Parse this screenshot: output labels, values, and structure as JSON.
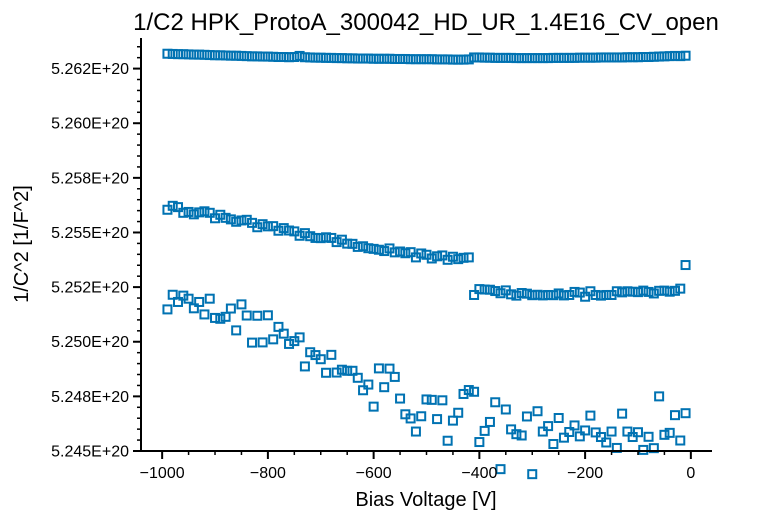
{
  "chart_data": {
    "type": "scatter",
    "title": "1/C2 HPK_ProtoA_300042_HD_UR_1.4E16_CV_open",
    "xlabel": "Bias Voltage [V]",
    "ylabel": "1/C^2 [1/F^2]",
    "xlim": [
      -1040,
      40
    ],
    "ylim": [
      5.245e+20,
      5.2639e+20
    ],
    "x_ticks": [
      -1000,
      -800,
      -600,
      -400,
      -200,
      0
    ],
    "x_tick_labels": [
      "−1000",
      "−800",
      "−600",
      "−400",
      "−200",
      "0"
    ],
    "y_ticks": [
      5.245e+20,
      5.2475e+20,
      5.25e+20,
      5.2525e+20,
      5.255e+20,
      5.2575e+20,
      5.26e+20,
      5.2625e+20
    ],
    "y_tick_labels": [
      "5.245E+20",
      "5.248E+20",
      "5.250E+20",
      "5.252E+20",
      "5.255E+20",
      "5.258E+20",
      "5.260E+20",
      "5.262E+20"
    ],
    "grid": false,
    "marker": "open-square",
    "color": "#0072B2",
    "series": [
      {
        "x": [
          -990,
          -980,
          -970,
          -960,
          -950,
          -940,
          -930,
          -920,
          -910,
          -900,
          -890,
          -880,
          -870,
          -860,
          -850,
          -840,
          -830,
          -820,
          -810,
          -800,
          -790,
          -780,
          -770,
          -760,
          -750,
          -740,
          -730,
          -720,
          -710,
          -700,
          -690,
          -680,
          -670,
          -660,
          -650,
          -640,
          -630,
          -620,
          -610,
          -600,
          -590,
          -580,
          -570,
          -560,
          -550,
          -540,
          -530,
          -520,
          -510,
          -500,
          -490,
          -480,
          -470,
          -460,
          -450,
          -440,
          -430,
          -420,
          -410,
          -400,
          -390,
          -380,
          -370,
          -360,
          -350,
          -340,
          -330,
          -320,
          -310,
          -300,
          -290,
          -280,
          -270,
          -260,
          -250,
          -240,
          -230,
          -220,
          -210,
          -200,
          -190,
          -180,
          -170,
          -160,
          -150,
          -140,
          -130,
          -120,
          -110,
          -100,
          -90,
          -80,
          -70,
          -60,
          -50,
          -40,
          -30,
          -20,
          -10
        ],
        "y": [
          5.26318e+20,
          5.26317e+20,
          5.26316e+20,
          5.26316e+20,
          5.26315e+20,
          5.26314e+20,
          5.26314e+20,
          5.26313e+20,
          5.26312e+20,
          5.26311e+20,
          5.26311e+20,
          5.2631e+20,
          5.26309e+20,
          5.26309e+20,
          5.26308e+20,
          5.26307e+20,
          5.26306e+20,
          5.26306e+20,
          5.26305e+20,
          5.26305e+20,
          5.26304e+20,
          5.26303e+20,
          5.26303e+20,
          5.26302e+20,
          5.26303e+20,
          5.26308e+20,
          5.26302e+20,
          5.26301e+20,
          5.263e+20,
          5.263e+20,
          5.26299e+20,
          5.26299e+20,
          5.26298e+20,
          5.26298e+20,
          5.26297e+20,
          5.26297e+20,
          5.26296e+20,
          5.26296e+20,
          5.26296e+20,
          5.26295e+20,
          5.26295e+20,
          5.26295e+20,
          5.26295e+20,
          5.26294e+20,
          5.26294e+20,
          5.26294e+20,
          5.26293e+20,
          5.26293e+20,
          5.26293e+20,
          5.26293e+20,
          5.26293e+20,
          5.26292e+20,
          5.26292e+20,
          5.26292e+20,
          5.26291e+20,
          5.26291e+20,
          5.26291e+20,
          5.26292e+20,
          5.26301e+20,
          5.26301e+20,
          5.263e+20,
          5.263e+20,
          5.26299e+20,
          5.26299e+20,
          5.26299e+20,
          5.26299e+20,
          5.26298e+20,
          5.26298e+20,
          5.26298e+20,
          5.26298e+20,
          5.26298e+20,
          5.26298e+20,
          5.26298e+20,
          5.26299e+20,
          5.26299e+20,
          5.26299e+20,
          5.26299e+20,
          5.26299e+20,
          5.263e+20,
          5.263e+20,
          5.263e+20,
          5.263e+20,
          5.26301e+20,
          5.26301e+20,
          5.26301e+20,
          5.26301e+20,
          5.26301e+20,
          5.26302e+20,
          5.26302e+20,
          5.26302e+20,
          5.26303e+20,
          5.26303e+20,
          5.26304e+20,
          5.26305e+20,
          5.26306e+20,
          5.26307e+20,
          5.26308e+20,
          5.26307e+20,
          5.26309e+20
        ]
      },
      {
        "x": [
          -990,
          -980,
          -970,
          -960,
          -950,
          -940,
          -930,
          -920,
          -910,
          -900,
          -890,
          -880,
          -870,
          -860,
          -850,
          -840,
          -830,
          -820,
          -810,
          -800,
          -790,
          -780,
          -770,
          -760,
          -750,
          -740,
          -730,
          -720,
          -710,
          -700,
          -690,
          -680,
          -670,
          -660,
          -650,
          -640,
          -630,
          -620,
          -610,
          -600,
          -590,
          -580,
          -570,
          -560,
          -550,
          -540,
          -530,
          -520,
          -510,
          -500,
          -490,
          -480,
          -470,
          -460,
          -450,
          -440,
          -430,
          -420
        ],
        "y": [
          5.25604e+20,
          5.25622e+20,
          5.25616e+20,
          5.2559e+20,
          5.25594e+20,
          5.25583e+20,
          5.25592e+20,
          5.25597e+20,
          5.2559e+20,
          5.25565e+20,
          5.25581e+20,
          5.25567e+20,
          5.2556e+20,
          5.25549e+20,
          5.25555e+20,
          5.25558e+20,
          5.25544e+20,
          5.25524e+20,
          5.25538e+20,
          5.25528e+20,
          5.25529e+20,
          5.25508e+20,
          5.2552e+20,
          5.25509e+20,
          5.25505e+20,
          5.25485e+20,
          5.25497e+20,
          5.25483e+20,
          5.25475e+20,
          5.25474e+20,
          5.25478e+20,
          5.25475e+20,
          5.25456e+20,
          5.25467e+20,
          5.25449e+20,
          5.25448e+20,
          5.25434e+20,
          5.25437e+20,
          5.25428e+20,
          5.25425e+20,
          5.25421e+20,
          5.25415e+20,
          5.25427e+20,
          5.25409e+20,
          5.25413e+20,
          5.25405e+20,
          5.2541e+20,
          5.25386e+20,
          5.25404e+20,
          5.25398e+20,
          5.25381e+20,
          5.25391e+20,
          5.25395e+20,
          5.25375e+20,
          5.25389e+20,
          5.25378e+20,
          5.25384e+20,
          5.25386e+20
        ]
      },
      {
        "x": [
          -410,
          -400,
          -390,
          -380,
          -370,
          -360,
          -350,
          -340,
          -330,
          -320,
          -310,
          -300,
          -290,
          -280,
          -270,
          -260,
          -250,
          -240,
          -230,
          -220,
          -210,
          -200,
          -190,
          -180,
          -170,
          -160,
          -150,
          -140,
          -130,
          -120,
          -110,
          -100,
          -90,
          -80,
          -70,
          -60,
          -50,
          -40,
          -30,
          -20,
          -10
        ],
        "y": [
          5.25214e+20,
          5.25241e+20,
          5.25239e+20,
          5.25238e+20,
          5.25232e+20,
          5.25222e+20,
          5.25235e+20,
          5.25217e+20,
          5.25211e+20,
          5.25223e+20,
          5.2522e+20,
          5.25213e+20,
          5.25215e+20,
          5.25212e+20,
          5.25214e+20,
          5.25213e+20,
          5.25221e+20,
          5.25212e+20,
          5.25214e+20,
          5.25228e+20,
          5.25225e+20,
          5.25206e+20,
          5.25231e+20,
          5.25214e+20,
          5.25211e+20,
          5.25214e+20,
          5.25214e+20,
          5.25231e+20,
          5.25226e+20,
          5.25231e+20,
          5.25229e+20,
          5.25227e+20,
          5.25234e+20,
          5.25228e+20,
          5.25221e+20,
          5.25233e+20,
          5.25234e+20,
          5.25229e+20,
          5.25233e+20,
          5.25243e+20,
          5.25351e+20
        ]
      },
      {
        "x": [
          -990,
          -980,
          -970,
          -960,
          -950,
          -940,
          -930,
          -920,
          -910,
          -900,
          -890,
          -880,
          -870,
          -860,
          -850,
          -840,
          -830,
          -820,
          -810,
          -800,
          -790,
          -780,
          -770,
          -760,
          -750,
          -740,
          -730,
          -720,
          -710,
          -700,
          -690,
          -680,
          -670,
          -660,
          -650,
          -640,
          -630,
          -620,
          -610,
          -600,
          -590,
          -580,
          -570,
          -560,
          -550,
          -540,
          -530,
          -520,
          -510,
          -500,
          -490,
          -480,
          -470,
          -460,
          -450,
          -440,
          -430,
          -420,
          -410,
          -400,
          -390,
          -380,
          -370,
          -360,
          -350,
          -340,
          -330,
          -320,
          -310,
          -300,
          -290,
          -280,
          -270,
          -260,
          -250,
          -240,
          -230,
          -220,
          -210,
          -200,
          -190,
          -180,
          -170,
          -160,
          -150,
          -140,
          -130,
          -120,
          -110,
          -100,
          -90,
          -80,
          -70,
          -60,
          -50,
          -40,
          -30,
          -20,
          -10
        ],
        "y": [
          5.25148e+20,
          5.25215e+20,
          5.25182e+20,
          5.25211e+20,
          5.25197e+20,
          5.25153e+20,
          5.25182e+20,
          5.25125e+20,
          5.25197e+20,
          5.25109e+20,
          5.25105e+20,
          5.25114e+20,
          5.25152e+20,
          5.25052e+20,
          5.25171e+20,
          5.2512e+20,
          5.24996e+20,
          5.25119e+20,
          5.24997e+20,
          5.25121e+20,
          5.25011e+20,
          5.25068e+20,
          5.25037e+20,
          5.2499e+20,
          5.25003e+20,
          5.2502e+20,
          5.24887e+20,
          5.24952e+20,
          5.24939e+20,
          5.2492e+20,
          5.24858e+20,
          5.2494e+20,
          5.24859e+20,
          5.24872e+20,
          5.24867e+20,
          5.24867e+20,
          5.24835e+20,
          5.24778e+20,
          5.24804e+20,
          5.24703e+20,
          5.24878e+20,
          5.24792e+20,
          5.24877e+20,
          5.24839e+20,
          5.2474e+20,
          5.24668e+20,
          5.24649e+20,
          5.24589e+20,
          5.24659e+20,
          5.24736e+20,
          5.24734e+20,
          5.24646e+20,
          5.24732e+20,
          5.24547e+20,
          5.24639e+20,
          5.24675e+20,
          5.24761e+20,
          5.24779e+20,
          5.24771e+20,
          5.24541e+20,
          5.24592e+20,
          5.24633e+20,
          5.24723e+20,
          5.24417e+20,
          5.2469e+20,
          5.24599e+20,
          5.24577e+20,
          5.24571e+20,
          5.24658e+20,
          5.24394e+20,
          5.24682e+20,
          5.24589e+20,
          5.24614e+20,
          5.24532e+20,
          5.24651e+20,
          5.24561e+20,
          5.24587e+20,
          5.24617e+20,
          5.24567e+20,
          5.24594e+20,
          5.24662e+20,
          5.24585e+20,
          5.24564e+20,
          5.24539e+20,
          5.24589e+20,
          5.24514e+20,
          5.24671e+20,
          5.24589e+20,
          5.24564e+20,
          5.24586e+20,
          5.24505e+20,
          5.24565e+20,
          5.24513e+20,
          5.2475e+20,
          5.24574e+20,
          5.24583e+20,
          5.24664e+20,
          5.24548e+20,
          5.24673e+20
        ]
      }
    ]
  }
}
